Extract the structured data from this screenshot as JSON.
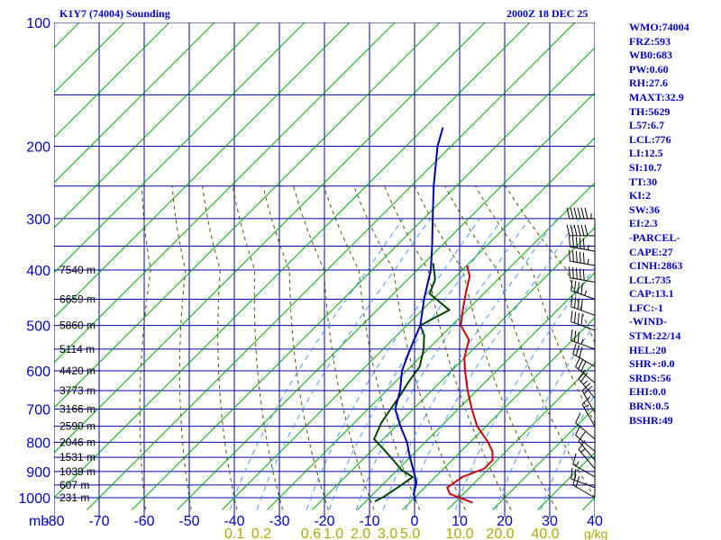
{
  "header": {
    "station_title": "K1Y7 (74004) Sounding",
    "valid_time": "2000Z 18 DEC 25"
  },
  "indices": [
    "WMO:74004",
    "FRZ:593",
    "WB0:683",
    "PW:0.60",
    "RH:27.6",
    "MAXT:32.9",
    "TH:5629",
    "L57:6.7",
    "LCL:776",
    "LI:12.5",
    "SI:10.7",
    "TT:30",
    "KI:2",
    "SW:36",
    "EI:2.3",
    "-PARCEL-",
    "CAPE:27",
    "CINH:2863",
    "LCL:735",
    "CAP:13.1",
    "LFC:-1",
    "-WIND-",
    "STM:22/14",
    "HEL:20",
    "SHR+:0.0",
    "SRDS:56",
    "EHI:0.0",
    "BRN:0.5",
    "BSHR:49"
  ],
  "colors": {
    "grid": "#0000aa",
    "isotherm": "#00aa00",
    "temperature": "#cc0000",
    "dewpoint": "#004400",
    "parcel": "#0000aa",
    "dry_adiabat": "#555500",
    "mixing_ratio": "#4499ff",
    "labels": "#0000cc",
    "mixing_label": "#aaaa00"
  },
  "chart_data": {
    "type": "skew-t",
    "pressure_axis": {
      "unit_label": "mb",
      "ticks": [
        "100",
        "200",
        "300",
        "400",
        "500",
        "600",
        "700",
        "800",
        "900",
        "1000"
      ],
      "range": [
        1000,
        100
      ],
      "scale": "log"
    },
    "temperature_axis": {
      "ticks": [
        "-80",
        "-70",
        "-60",
        "-50",
        "-40",
        "-30",
        "-20",
        "-10",
        "0",
        "10",
        "20",
        "30",
        "40"
      ],
      "range": [
        -80,
        40
      ]
    },
    "height_labels": [
      {
        "p": 400,
        "label": "7540 m"
      },
      {
        "p": 450,
        "label": "6659 m"
      },
      {
        "p": 500,
        "label": "5860 m"
      },
      {
        "p": 550,
        "label": "5114 m"
      },
      {
        "p": 600,
        "label": "4420 m"
      },
      {
        "p": 650,
        "label": "3773 m"
      },
      {
        "p": 700,
        "label": "3166 m"
      },
      {
        "p": 750,
        "label": "2590 m"
      },
      {
        "p": 800,
        "label": "2046 m"
      },
      {
        "p": 850,
        "label": "1531 m"
      },
      {
        "p": 900,
        "label": "1039 m"
      },
      {
        "p": 950,
        "label": "607 m"
      },
      {
        "p": 1000,
        "label": "231 m"
      }
    ],
    "mixing_ratio_labels": [
      {
        "t": -40,
        "label": "0.1"
      },
      {
        "t": -34,
        "label": "0.2"
      },
      {
        "t": -23,
        "label": "0.6"
      },
      {
        "t": -18,
        "label": "1.0"
      },
      {
        "t": -12,
        "label": "2.0"
      },
      {
        "t": -6,
        "label": "3.0"
      },
      {
        "t": -1,
        "label": "5.0"
      },
      {
        "t": 10,
        "label": "10.0"
      },
      {
        "t": 19,
        "label": "20.0"
      },
      {
        "t": 29,
        "label": "40.0"
      }
    ],
    "mixing_ratio_unit": "g/kg",
    "series": [
      {
        "key": "temperature",
        "points": [
          [
            1020,
            14
          ],
          [
            985,
            7
          ],
          [
            960,
            5
          ],
          [
            920,
            6
          ],
          [
            890,
            9
          ],
          [
            860,
            9
          ],
          [
            830,
            7
          ],
          [
            800,
            4
          ],
          [
            750,
            -2
          ],
          [
            700,
            -7
          ],
          [
            650,
            -12
          ],
          [
            600,
            -17
          ],
          [
            570,
            -20
          ],
          [
            530,
            -23
          ],
          [
            500,
            -28
          ],
          [
            470,
            -31
          ],
          [
            440,
            -34
          ],
          [
            410,
            -37
          ],
          [
            390,
            -40
          ]
        ]
      },
      {
        "key": "dewpoint",
        "points": [
          [
            1015,
            -8
          ],
          [
            995,
            -7
          ],
          [
            960,
            -6
          ],
          [
            920,
            -5
          ],
          [
            895,
            -9
          ],
          [
            860,
            -13
          ],
          [
            820,
            -18
          ],
          [
            790,
            -22
          ],
          [
            740,
            -24
          ],
          [
            700,
            -25
          ],
          [
            660,
            -26
          ],
          [
            630,
            -27
          ],
          [
            590,
            -28
          ],
          [
            550,
            -31
          ],
          [
            520,
            -34
          ],
          [
            500,
            -37
          ],
          [
            470,
            -34
          ],
          [
            440,
            -42
          ],
          [
            415,
            -44
          ],
          [
            385,
            -48
          ]
        ]
      },
      {
        "key": "parcel",
        "points": [
          [
            1015,
            1
          ],
          [
            985,
            -1
          ],
          [
            940,
            -3
          ],
          [
            900,
            -6
          ],
          [
            850,
            -10
          ],
          [
            800,
            -14
          ],
          [
            750,
            -19
          ],
          [
            700,
            -24
          ],
          [
            650,
            -27
          ],
          [
            600,
            -31
          ],
          [
            550,
            -34
          ],
          [
            500,
            -37
          ],
          [
            450,
            -42
          ],
          [
            400,
            -47
          ],
          [
            350,
            -52
          ],
          [
            300,
            -58
          ],
          [
            250,
            -65
          ],
          [
            200,
            -73
          ],
          [
            180,
            -76
          ]
        ]
      }
    ],
    "wind_barbs": [
      {
        "p": 1000,
        "dir": 300,
        "spd": 20
      },
      {
        "p": 960,
        "dir": 290,
        "spd": 20
      },
      {
        "p": 920,
        "dir": 300,
        "spd": 15
      },
      {
        "p": 890,
        "dir": 320,
        "spd": 15
      },
      {
        "p": 860,
        "dir": 320,
        "spd": 10
      },
      {
        "p": 830,
        "dir": 310,
        "spd": 10
      },
      {
        "p": 790,
        "dir": 310,
        "spd": 10
      },
      {
        "p": 750,
        "dir": 330,
        "spd": 15
      },
      {
        "p": 710,
        "dir": 330,
        "spd": 20
      },
      {
        "p": 670,
        "dir": 320,
        "spd": 25
      },
      {
        "p": 630,
        "dir": 310,
        "spd": 30
      },
      {
        "p": 590,
        "dir": 300,
        "spd": 30
      },
      {
        "p": 550,
        "dir": 290,
        "spd": 35
      },
      {
        "p": 510,
        "dir": 290,
        "spd": 40
      },
      {
        "p": 480,
        "dir": 290,
        "spd": 40
      },
      {
        "p": 450,
        "dir": 290,
        "spd": 45
      },
      {
        "p": 420,
        "dir": 280,
        "spd": 50
      },
      {
        "p": 390,
        "dir": 280,
        "spd": 55
      },
      {
        "p": 360,
        "dir": 280,
        "spd": 55
      },
      {
        "p": 330,
        "dir": 270,
        "spd": 60
      },
      {
        "p": 300,
        "dir": 270,
        "spd": 65
      }
    ]
  }
}
